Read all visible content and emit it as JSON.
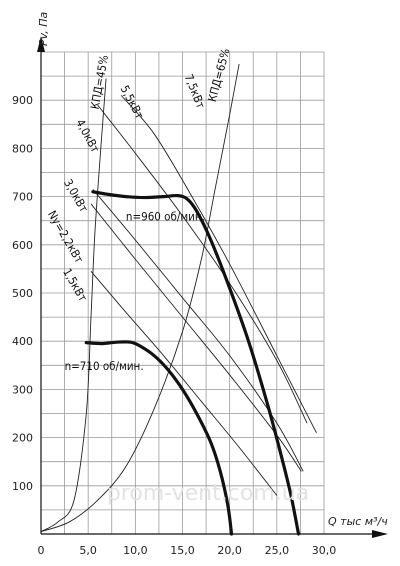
{
  "watermark": "prom-vent.com.ua",
  "chart_data": {
    "type": "line",
    "title": "",
    "xlabel": "Q тыс м³/ч",
    "ylabel": "Pv, Па",
    "xlim": [
      0,
      30
    ],
    "ylim": [
      0,
      1000
    ],
    "x_ticks": [
      {
        "value": 0,
        "label": "0"
      },
      {
        "value": 5,
        "label": "5,0"
      },
      {
        "value": 10,
        "label": "10,0"
      },
      {
        "value": 15,
        "label": "15,0"
      },
      {
        "value": 20,
        "label": "20,0"
      },
      {
        "value": 25,
        "label": "25,0"
      },
      {
        "value": 30,
        "label": "30,0"
      }
    ],
    "y_ticks": [
      {
        "value": 100,
        "label": "100"
      },
      {
        "value": 200,
        "label": "200"
      },
      {
        "value": 300,
        "label": "300"
      },
      {
        "value": 400,
        "label": "400"
      },
      {
        "value": 500,
        "label": "500"
      },
      {
        "value": 600,
        "label": "600"
      },
      {
        "value": 700,
        "label": "700"
      },
      {
        "value": 800,
        "label": "800"
      },
      {
        "value": 900,
        "label": "900"
      }
    ],
    "x_grid_values": [
      0,
      2.5,
      5,
      7.5,
      10,
      12.5,
      15,
      17.5,
      20,
      22.5,
      25,
      27.5,
      30
    ],
    "y_grid_values": [
      0,
      50,
      100,
      150,
      200,
      250,
      300,
      350,
      400,
      450,
      500,
      550,
      600,
      650,
      700,
      750,
      800,
      850,
      900,
      950,
      1000
    ],
    "grid": true,
    "fan_curves": [
      {
        "label": "n=960 об/мин.",
        "points": [
          [
            5.5,
            710
          ],
          [
            7,
            705
          ],
          [
            9,
            700
          ],
          [
            11,
            698
          ],
          [
            13,
            700
          ],
          [
            14.5,
            702
          ],
          [
            15.5,
            695
          ],
          [
            16.5,
            670
          ],
          [
            18,
            610
          ],
          [
            20,
            510
          ],
          [
            22,
            400
          ],
          [
            24,
            270
          ],
          [
            25.5,
            160
          ],
          [
            26.5,
            80
          ],
          [
            27.3,
            0
          ]
        ]
      },
      {
        "label": "n=710 об/мин.",
        "points": [
          [
            4.8,
            397
          ],
          [
            6.5,
            395
          ],
          [
            8,
            398
          ],
          [
            9.5,
            398
          ],
          [
            10.5,
            390
          ],
          [
            12,
            370
          ],
          [
            13.5,
            340
          ],
          [
            15,
            300
          ],
          [
            16.5,
            250
          ],
          [
            18,
            190
          ],
          [
            19,
            130
          ],
          [
            19.8,
            60
          ],
          [
            20.2,
            0
          ]
        ]
      }
    ],
    "power_lines": [
      {
        "label": "1,5кВт",
        "points": [
          [
            5.3,
            545
          ],
          [
            9,
            460
          ],
          [
            13,
            370
          ],
          [
            17,
            275
          ],
          [
            21,
            180
          ],
          [
            25,
            80
          ]
        ]
      },
      {
        "label": "Nу=2,2кВт",
        "points": [
          [
            5.3,
            685
          ],
          [
            10,
            570
          ],
          [
            15,
            450
          ],
          [
            20,
            330
          ],
          [
            25,
            205
          ],
          [
            27.6,
            130
          ]
        ]
      },
      {
        "label": "3,0кВт",
        "points": [
          [
            5.5,
            715
          ],
          [
            10,
            610
          ],
          [
            15,
            490
          ],
          [
            20,
            370
          ],
          [
            25,
            230
          ],
          [
            27.8,
            130
          ]
        ]
      },
      {
        "label": "4,0кВт",
        "points": [
          [
            6,
            890
          ],
          [
            10,
            790
          ],
          [
            15,
            660
          ],
          [
            20,
            520
          ],
          [
            25,
            360
          ],
          [
            28.2,
            230
          ]
        ]
      },
      {
        "label": "5,5кВт",
        "points": [
          [
            8.5,
            910
          ],
          [
            12,
            830
          ],
          [
            16,
            700
          ],
          [
            20,
            560
          ],
          [
            25,
            370
          ],
          [
            29.2,
            210
          ]
        ]
      }
    ],
    "efficiency_lines": [
      {
        "label": "КПД=45%",
        "points": [
          [
            0,
            5
          ],
          [
            1.8,
            25
          ],
          [
            3.5,
            70
          ],
          [
            4.8,
            250
          ],
          [
            5.3,
            450
          ],
          [
            5.7,
            620
          ],
          [
            6.3,
            790
          ],
          [
            6.9,
            945
          ]
        ]
      },
      {
        "label": "КПД=65%",
        "points": [
          [
            0,
            5
          ],
          [
            3,
            25
          ],
          [
            6,
            70
          ],
          [
            9,
            140
          ],
          [
            12,
            260
          ],
          [
            15,
            420
          ],
          [
            17,
            570
          ],
          [
            18.5,
            720
          ],
          [
            20,
            870
          ],
          [
            21,
            975
          ]
        ]
      }
    ],
    "annotations": [
      {
        "text": "КПД=45%",
        "x": 6.1,
        "y": 880,
        "rotate": -80
      },
      {
        "text": "5,5кВт",
        "x": 8.4,
        "y": 925,
        "rotate": 62
      },
      {
        "text": "7,5кВт",
        "x": 15.2,
        "y": 950,
        "rotate": 68
      },
      {
        "text": "КПД=65%",
        "x": 18.5,
        "y": 895,
        "rotate": -75
      },
      {
        "text": "4,0кВт",
        "x": 3.7,
        "y": 855,
        "rotate": 62
      },
      {
        "text": "3,0кВт",
        "x": 2.4,
        "y": 730,
        "rotate": 60
      },
      {
        "text": "n=960 об/мин.",
        "x": 9.0,
        "y": 650,
        "rotate": 0
      },
      {
        "text": "Nу=2,2кВт",
        "x": 0.7,
        "y": 665,
        "rotate": 60
      },
      {
        "text": "1,5кВт",
        "x": 2.3,
        "y": 545,
        "rotate": 60
      },
      {
        "text": "n=710 об/мин.",
        "x": 2.5,
        "y": 340,
        "rotate": 0
      }
    ]
  }
}
